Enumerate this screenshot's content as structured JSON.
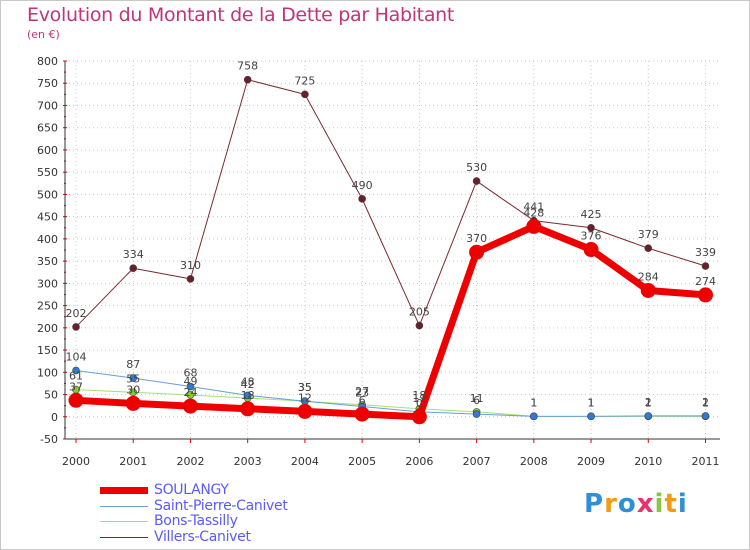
{
  "chart_data": {
    "type": "line",
    "title": "Evolution du Montant de la Dette par Habitant",
    "subtitle": "(en €)",
    "xlabel": "",
    "ylabel": "",
    "ylim": [
      -50,
      800
    ],
    "ytick_step": 50,
    "categories": [
      "2000",
      "2001",
      "2002",
      "2003",
      "2004",
      "2005",
      "2006",
      "2007",
      "2008",
      "2009",
      "2010",
      "2011"
    ],
    "series": [
      {
        "name": "SOULANGY",
        "color": "#ee0000",
        "width": 7,
        "marker": 7.5,
        "markerColor": "#ee0000",
        "values": [
          37,
          30,
          24,
          18,
          12,
          6,
          0,
          370,
          428,
          376,
          284,
          274
        ],
        "labels": [
          "37",
          "30",
          "24",
          "18",
          "12",
          "6",
          "0",
          "370",
          "428",
          "376",
          "284",
          "274"
        ]
      },
      {
        "name": "Saint-Pierre-Canivet",
        "color": "#6a9fd4",
        "width": 1,
        "marker": 3.5,
        "markerColor": "#2e7bd1",
        "values": [
          104,
          87,
          68,
          48,
          35,
          23,
          11,
          6,
          1,
          1,
          2,
          2
        ],
        "labels": [
          "104",
          "87",
          "68",
          "48",
          "35",
          "23",
          "11",
          "6",
          "1",
          "1",
          "2",
          "2"
        ]
      },
      {
        "name": "Bons-Tassilly",
        "color": "#a7e07a",
        "width": 1,
        "marker": 3.5,
        "markerColor": "#7ed321",
        "values": [
          61,
          55,
          49,
          42,
          35,
          27,
          18,
          11,
          1,
          1,
          1,
          1
        ],
        "labels": [
          "61",
          "55",
          "49",
          "42",
          "35",
          "27",
          "18",
          "11",
          "1",
          "1",
          "1",
          "1"
        ]
      },
      {
        "name": "Villers-Canivet",
        "color": "#7a2a30",
        "width": 1,
        "marker": 3.5,
        "markerColor": "#6b1f28",
        "values": [
          202,
          334,
          310,
          758,
          725,
          490,
          205,
          530,
          441,
          425,
          379,
          339
        ],
        "labels": [
          "202",
          "334",
          "310",
          "758",
          "725",
          "490",
          "205",
          "530",
          "441",
          "425",
          "379",
          "339"
        ]
      }
    ]
  },
  "legend": {
    "items": [
      "SOULANGY",
      "Saint-Pierre-Canivet",
      "Bons-Tassilly",
      "Villers-Canivet"
    ]
  },
  "logo": {
    "letters": [
      "P",
      "r",
      "o",
      "x",
      "i",
      "t",
      "i"
    ],
    "colors": [
      "#2e8fd6",
      "#f39c12",
      "#2e8fd6",
      "#e8336a",
      "#8cc63f",
      "#f39c12",
      "#2e8fd6"
    ]
  }
}
